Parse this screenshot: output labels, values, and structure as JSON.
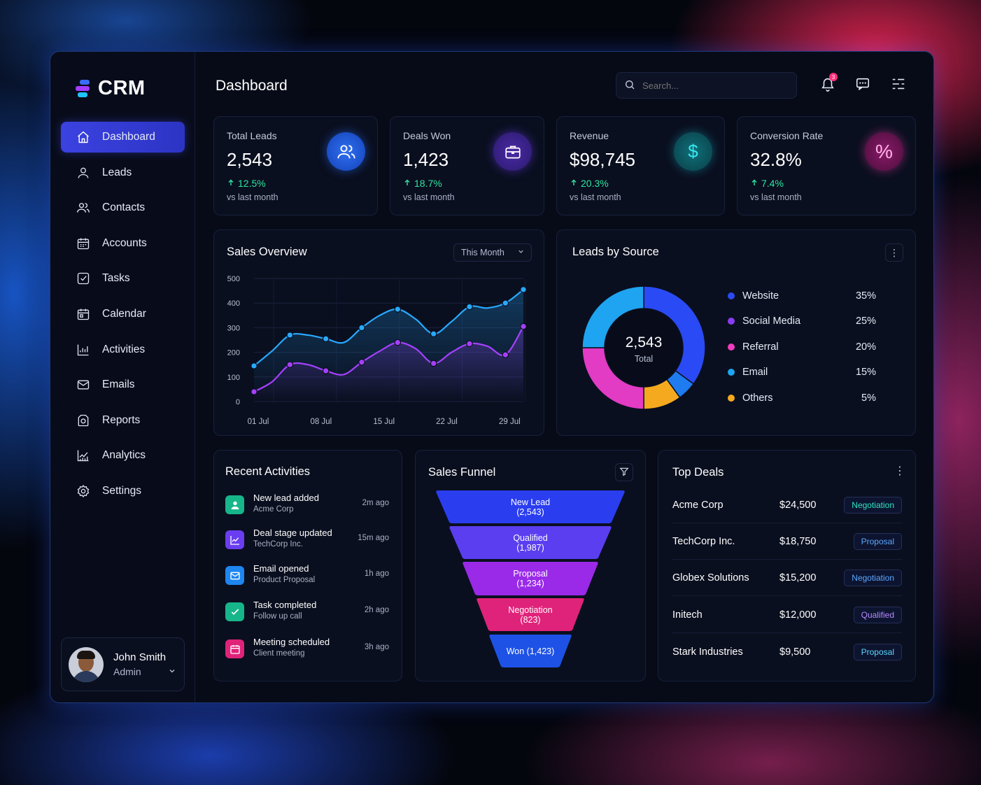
{
  "app": {
    "logo": "CRM",
    "page_title": "Dashboard"
  },
  "sidebar": {
    "items": [
      {
        "label": "Dashboard",
        "icon": "home-icon",
        "active": true
      },
      {
        "label": "Leads",
        "icon": "user-icon"
      },
      {
        "label": "Contacts",
        "icon": "users-icon"
      },
      {
        "label": "Accounts",
        "icon": "building-icon"
      },
      {
        "label": "Tasks",
        "icon": "checkbox-icon"
      },
      {
        "label": "Calendar",
        "icon": "calendar-icon"
      },
      {
        "label": "Activities",
        "icon": "activity-chart-icon"
      },
      {
        "label": "Emails",
        "icon": "mail-icon"
      },
      {
        "label": "Reports",
        "icon": "report-icon"
      },
      {
        "label": "Analytics",
        "icon": "analytics-icon"
      },
      {
        "label": "Settings",
        "icon": "gear-icon"
      }
    ],
    "user": {
      "name": "John Smith",
      "role": "Admin"
    }
  },
  "header": {
    "search_placeholder": "Search...",
    "notification_count": "3"
  },
  "kpis": [
    {
      "label": "Total Leads",
      "value": "2,543",
      "delta": "12.5%",
      "sub": "vs last month",
      "icon": "users-icon",
      "color": "#1f5fe0"
    },
    {
      "label": "Deals Won",
      "value": "1,423",
      "delta": "18.7%",
      "sub": "vs last month",
      "icon": "briefcase-icon",
      "color": "#5a2fd8"
    },
    {
      "label": "Revenue",
      "value": "$98,745",
      "delta": "20.3%",
      "sub": "vs last month",
      "icon": "dollar-icon",
      "color": "#0f7c86"
    },
    {
      "label": "Conversion Rate",
      "value": "32.8%",
      "delta": "7.4%",
      "sub": "vs last month",
      "icon": "percent-icon",
      "color": "#a0207a"
    }
  ],
  "sales_overview": {
    "title": "Sales Overview",
    "period": "This Month"
  },
  "chart_data": [
    {
      "type": "line",
      "x_ticks": [
        "01 Jul",
        "08 Jul",
        "15 Jul",
        "22 Jul",
        "29 Jul"
      ],
      "y_ticks": [
        0,
        100,
        200,
        300,
        400,
        500
      ],
      "ylim": [
        0,
        500
      ],
      "xlim": [
        1,
        31
      ],
      "grid": true,
      "series": [
        {
          "color": "#28a9ff",
          "x": [
            1,
            3,
            5,
            7,
            9,
            11,
            13,
            15,
            17,
            19,
            21,
            23,
            25,
            27,
            29,
            31
          ],
          "y": [
            145,
            205,
            270,
            270,
            255,
            240,
            300,
            350,
            375,
            335,
            275,
            325,
            385,
            380,
            400,
            455
          ]
        },
        {
          "color": "#a540ff",
          "x": [
            1,
            3,
            5,
            7,
            9,
            11,
            13,
            15,
            17,
            19,
            21,
            23,
            25,
            27,
            29,
            31
          ],
          "y": [
            40,
            80,
            150,
            150,
            125,
            110,
            160,
            205,
            240,
            215,
            155,
            200,
            235,
            225,
            190,
            305
          ]
        }
      ]
    },
    {
      "type": "pie",
      "title": "Leads by Source",
      "center_value": "2,543",
      "center_label": "Total",
      "slices": [
        {
          "label": "Website",
          "value": 35,
          "pct": "35%",
          "color": "#2a4af5"
        },
        {
          "label": "Social Media",
          "value": 25,
          "pct": "25%",
          "color": "#8a3cf0"
        },
        {
          "label": "Referral",
          "value": 20,
          "pct": "20%",
          "color": "#f03cbe"
        },
        {
          "label": "Email",
          "value": 15,
          "pct": "15%",
          "color": "#1ea4f0"
        },
        {
          "label": "Others",
          "value": 5,
          "pct": "5%",
          "color": "#f5a91e"
        }
      ],
      "ring_order": [
        {
          "color": "#2a4af5",
          "value": 35
        },
        {
          "color": "#1e7cf0",
          "value": 5
        },
        {
          "color": "#f5a91e",
          "value": 10
        },
        {
          "color": "#e23bc4",
          "value": 25
        },
        {
          "color": "#1ea4f0",
          "value": 25
        }
      ]
    },
    {
      "type": "funnel",
      "title": "Sales Funnel",
      "stages": [
        {
          "label": "New Lead",
          "value": "(2,543)",
          "color": "#2a3ef0"
        },
        {
          "label": "Qualified",
          "value": "(1,987)",
          "color": "#5a3ef0"
        },
        {
          "label": "Proposal",
          "value": "(1,234)",
          "color": "#9a2ae8"
        },
        {
          "label": "Negotiation",
          "value": "(823)",
          "color": "#e0237a"
        },
        {
          "label": "Won (1,423)",
          "value": "",
          "color": "#1e52e6"
        }
      ]
    }
  ],
  "recent_activities": {
    "title": "Recent Activities",
    "items": [
      {
        "title": "New lead added",
        "sub": "Acme Corp",
        "time": "2m ago",
        "icon": "user-add-icon",
        "color": "#17b58a"
      },
      {
        "title": "Deal stage updated",
        "sub": "TechCorp Inc.",
        "time": "15m ago",
        "icon": "chart-icon",
        "color": "#6a3ef0"
      },
      {
        "title": "Email opened",
        "sub": "Product Proposal",
        "time": "1h ago",
        "icon": "mail-icon",
        "color": "#1e86f0"
      },
      {
        "title": "Task completed",
        "sub": "Follow up call",
        "time": "2h ago",
        "icon": "check-icon",
        "color": "#17b58a"
      },
      {
        "title": "Meeting scheduled",
        "sub": "Client meeting",
        "time": "3h ago",
        "icon": "calendar-icon",
        "color": "#e0237a"
      }
    ]
  },
  "top_deals": {
    "title": "Top Deals",
    "rows": [
      {
        "name": "Acme Corp",
        "amount": "$24,500",
        "stage": "Negotiation",
        "color": "#2ee6c0"
      },
      {
        "name": "TechCorp Inc.",
        "amount": "$18,750",
        "stage": "Proposal",
        "color": "#5aa8ff"
      },
      {
        "name": "Globex Solutions",
        "amount": "$15,200",
        "stage": "Negotiation",
        "color": "#5aa8ff"
      },
      {
        "name": "Initech",
        "amount": "$12,000",
        "stage": "Qualified",
        "color": "#b68aff"
      },
      {
        "name": "Stark Industries",
        "amount": "$9,500",
        "stage": "Proposal",
        "color": "#5ad8ff"
      }
    ]
  }
}
